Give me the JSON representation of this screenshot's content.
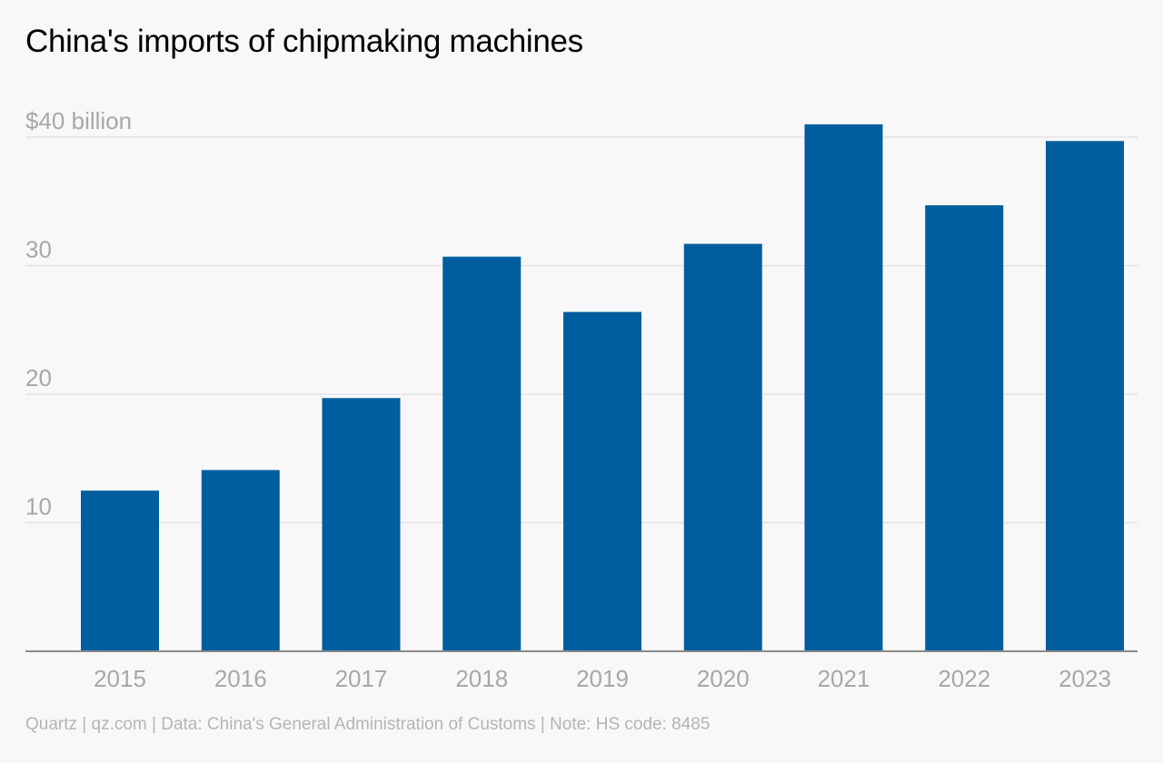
{
  "title": "China's imports of chipmaking machines",
  "footer": "Quartz | qz.com | Data: China's General Administration of Customs | Note: HS code: 8485",
  "colors": {
    "bar": "#005e9e",
    "gridline": "#e0e0e0",
    "baseline": "#8a8a8a",
    "tick_label": "#a8a8a8"
  },
  "chart_data": {
    "type": "bar",
    "categories": [
      "2015",
      "2016",
      "2017",
      "2018",
      "2019",
      "2020",
      "2021",
      "2022",
      "2023"
    ],
    "values": [
      12.5,
      14.1,
      19.7,
      30.7,
      26.4,
      31.7,
      41.0,
      34.7,
      39.7
    ],
    "yticks": [
      10,
      20,
      30,
      40
    ],
    "ytick_labels": [
      "10",
      "20",
      "30",
      "$40 billion"
    ],
    "ylim": [
      0,
      41
    ],
    "grid": true,
    "title": "China's imports of chipmaking machines",
    "xlabel": "",
    "ylabel": ""
  }
}
